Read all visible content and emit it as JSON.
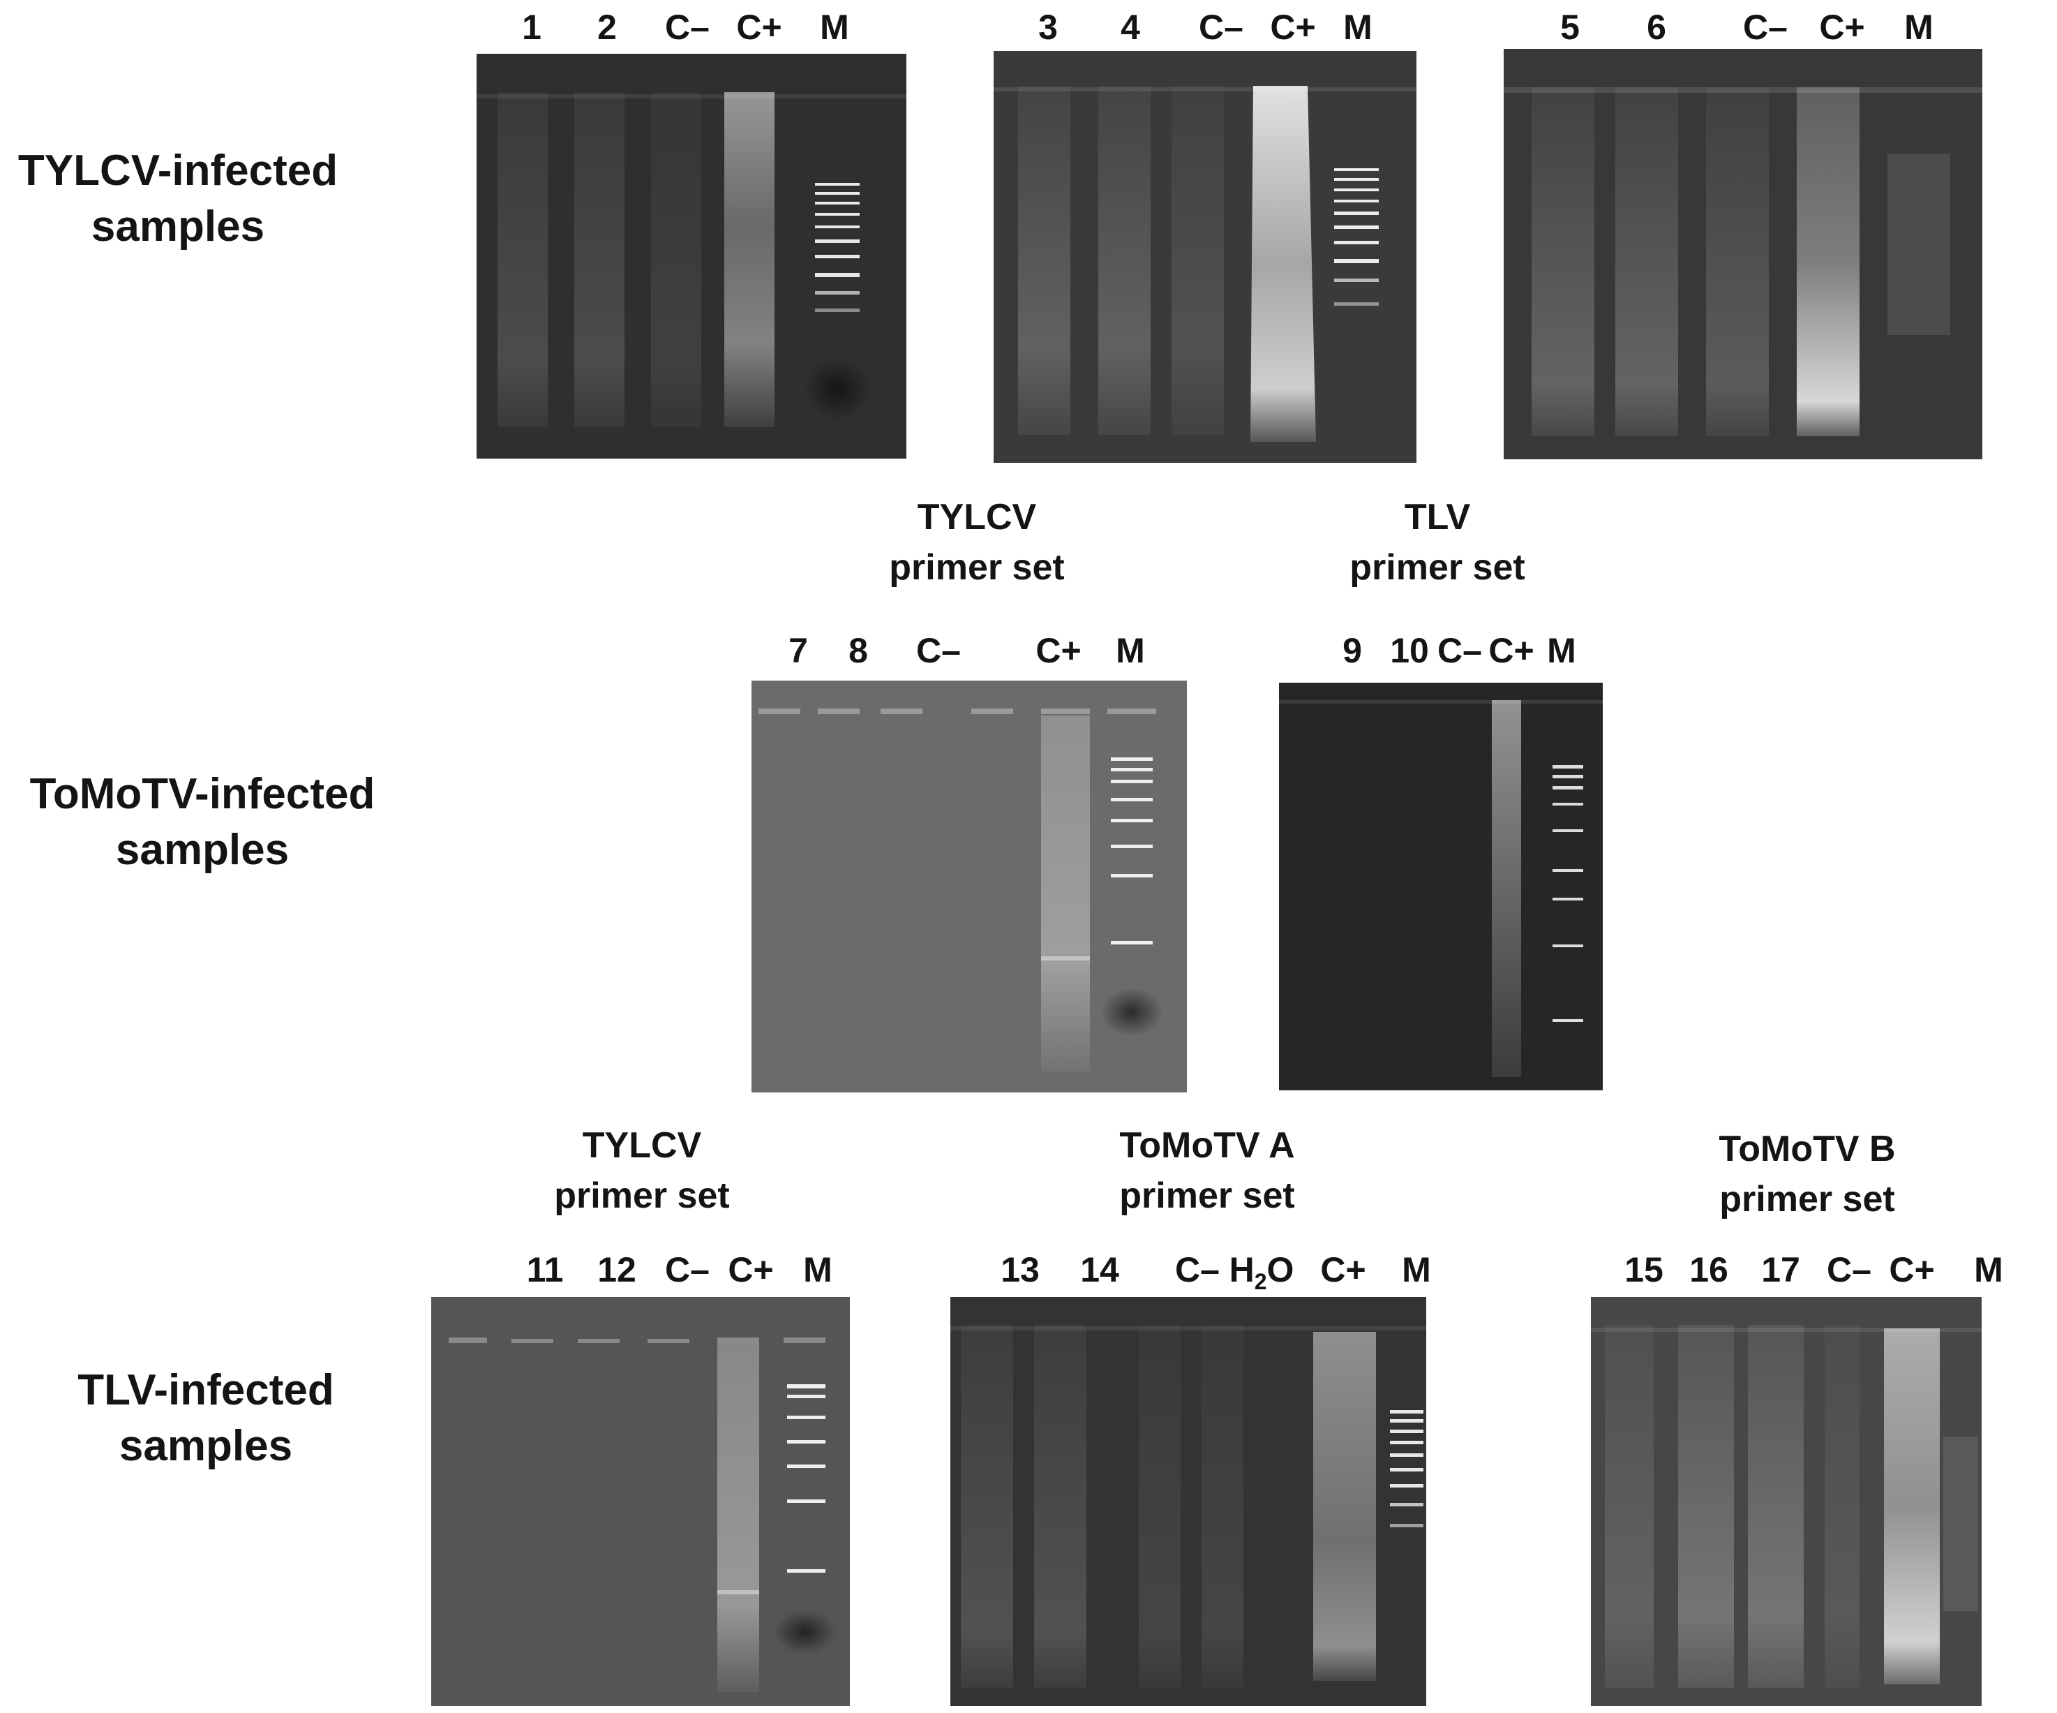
{
  "rows": {
    "tylcv": {
      "label_line1": "TYLCV-infected",
      "label_line2": "samples"
    },
    "tomotv": {
      "label_line1": "ToMoTV-infected",
      "label_line2": "samples"
    },
    "tlv": {
      "label_line1": "TLV-infected",
      "label_line2": "samples"
    }
  },
  "primer_sets": {
    "row2_left": {
      "line1": "TYLCV",
      "line2": "primer set"
    },
    "row2_right": {
      "line1": "TLV",
      "line2": "primer set"
    },
    "row3_left": {
      "line1": "TYLCV",
      "line2": "primer set"
    },
    "row3_mid": {
      "line1": "ToMoTV A",
      "line2": "primer set"
    },
    "row3_right": {
      "line1": "ToMoTV B",
      "line2": "primer set"
    }
  },
  "gels": {
    "g1": {
      "lanes": [
        "1",
        "2",
        "C–",
        "C+",
        "M"
      ]
    },
    "g2": {
      "lanes": [
        "3",
        "4",
        "C–",
        "C+",
        "M"
      ]
    },
    "g3": {
      "lanes": [
        "5",
        "6",
        "C–",
        "C+",
        "M"
      ]
    },
    "g4": {
      "lanes": [
        "7",
        "8",
        "C–",
        "C+",
        "M"
      ]
    },
    "g5": {
      "lanes": [
        "9",
        "10",
        "C–",
        "C+",
        "M"
      ]
    },
    "g6": {
      "lanes": [
        "11",
        "12",
        "C–",
        "C+",
        "M"
      ]
    },
    "g7": {
      "lanes": [
        "13",
        "14",
        "C–",
        "H",
        "O",
        "C+",
        "M"
      ],
      "h2o_subscript": "2"
    },
    "g8": {
      "lanes": [
        "15",
        "16",
        "17",
        "C–",
        "C+",
        "M"
      ]
    }
  }
}
